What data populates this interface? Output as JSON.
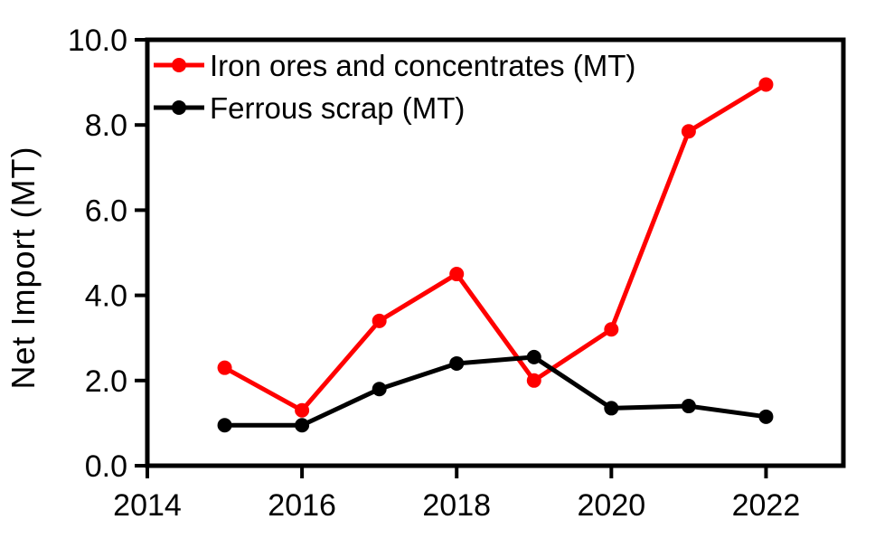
{
  "page": {
    "background": "#ffffff"
  },
  "chart_data": {
    "type": "line",
    "title": "",
    "xlabel": "",
    "ylabel": "Net Import (MT)",
    "x": [
      2015,
      2016,
      2017,
      2018,
      2019,
      2020,
      2021,
      2022
    ],
    "series": [
      {
        "id": "iron-ores-and-concentrates",
        "name": "Iron ores and concentrates (MT)",
        "color": "#ff0000",
        "marker": "circle",
        "values": [
          2.3,
          1.3,
          3.4,
          4.5,
          2.0,
          3.2,
          7.85,
          8.95
        ]
      },
      {
        "id": "ferrous-scrap",
        "name": "Ferrous scrap (MT)",
        "color": "#000000",
        "marker": "circle",
        "values": [
          0.95,
          0.95,
          1.8,
          2.4,
          2.55,
          1.35,
          1.4,
          1.15
        ]
      }
    ],
    "xlim": [
      2014,
      2023
    ],
    "ylim": [
      0,
      10
    ],
    "xticks": [
      2014,
      2016,
      2018,
      2020,
      2022
    ],
    "xtick_labels": [
      "2014",
      "2016",
      "2018",
      "2020",
      "2022"
    ],
    "yticks": [
      0,
      2,
      4,
      6,
      8,
      10
    ],
    "ytick_labels": [
      "0.0",
      "2.0",
      "4.0",
      "6.0",
      "8.0",
      "10.0"
    ],
    "grid": false,
    "legend_position": "top-left",
    "axis_color": "#000000",
    "plot_background": "#ffffff"
  }
}
